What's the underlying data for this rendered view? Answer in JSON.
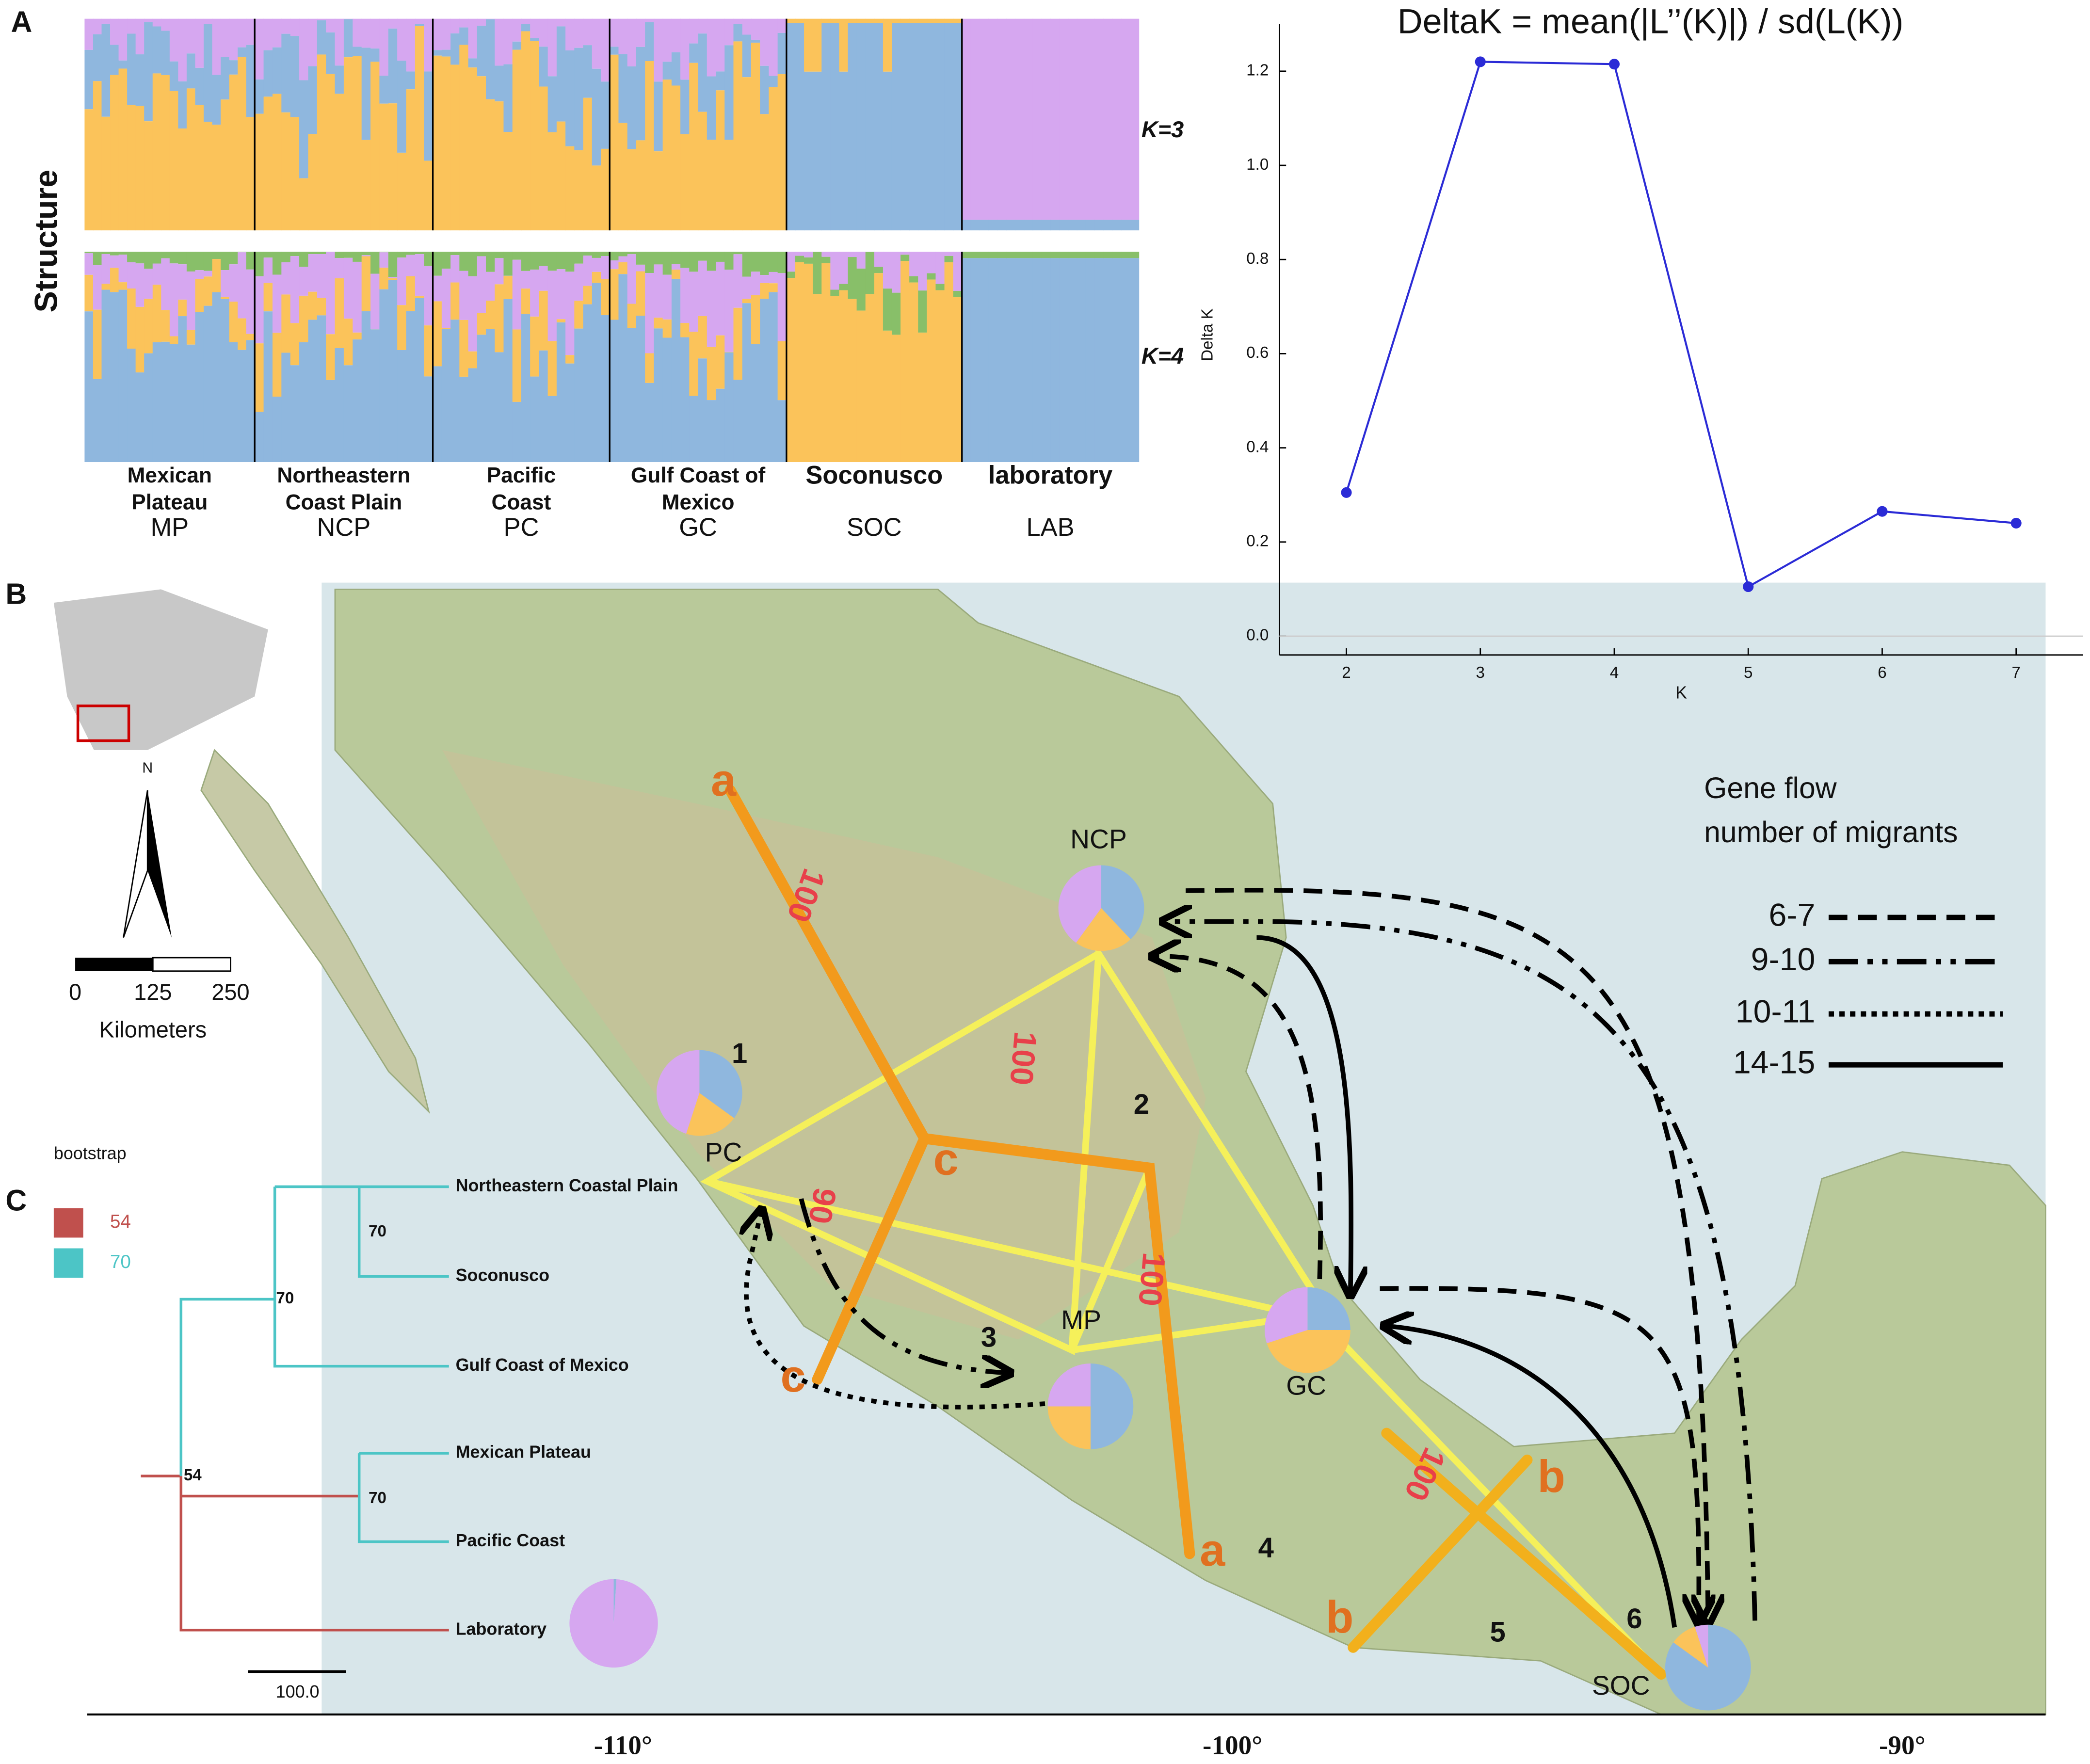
{
  "panels": {
    "a": "A",
    "b": "B",
    "c": "C"
  },
  "structure": {
    "ylabel": "Structure",
    "k_labels": [
      "K=3",
      "K=4"
    ],
    "groups": [
      {
        "name": [
          "Mexican",
          "Plateau"
        ],
        "abbr": "MP"
      },
      {
        "name": [
          "Northeastern",
          "Coast Plain"
        ],
        "abbr": "NCP"
      },
      {
        "name": [
          "Pacific",
          "Coast"
        ],
        "abbr": "PC"
      },
      {
        "name": [
          "Gulf Coast of",
          "Mexico"
        ],
        "abbr": "GC"
      },
      {
        "name": [
          "Soconusco"
        ],
        "abbr": "SOC"
      },
      {
        "name": [
          "laboratory"
        ],
        "abbr": "LAB"
      }
    ]
  },
  "chart_data": {
    "type": "line",
    "title": "DeltaK = mean(|L’’(K)|) / sd(L(K))",
    "x_label": "K",
    "y_label": "Delta K",
    "x": [
      2,
      3,
      4,
      5,
      6,
      7
    ],
    "values": [
      0.305,
      1.22,
      1.215,
      0.105,
      0.265,
      0.24
    ],
    "color": "#2b2bd6",
    "xlim": [
      1.5,
      7.5
    ],
    "ylim": [
      -0.04,
      1.3
    ],
    "xticks": [
      2,
      3,
      4,
      5,
      6,
      7
    ],
    "yticks": [
      {
        "value": 0,
        "label": "0.0"
      },
      {
        "value": 0.2,
        "label": "0.2"
      },
      {
        "value": 0.4,
        "label": "0.4"
      },
      {
        "value": 0.6,
        "label": "0.6"
      },
      {
        "value": 0.8,
        "label": "0.8"
      },
      {
        "value": 1.0,
        "label": "1.0"
      },
      {
        "value": 1.2,
        "label": "1.2"
      }
    ],
    "grid": false
  },
  "map": {
    "scale": {
      "north": "N",
      "ticks": [
        "0",
        "125",
        "250"
      ],
      "unit": "Kilometers"
    },
    "regions": [
      "NCP",
      "PC",
      "MP",
      "GC",
      "SOC"
    ],
    "clusters": [
      "1",
      "2",
      "3",
      "4",
      "5",
      "6"
    ],
    "lineages": [
      "a",
      "c",
      "c",
      "a",
      "b",
      "b"
    ],
    "supports": [
      "100",
      "100",
      "90",
      "100",
      "100"
    ],
    "legend": {
      "title": [
        "Gene flow",
        "number of migrants"
      ],
      "items": [
        "6-7",
        "9-10",
        "10-11",
        "14-15"
      ]
    },
    "longitudes": [
      "-110°",
      "-100°",
      "-90°"
    ]
  },
  "tree": {
    "legend": {
      "title": "bootstrap",
      "items": [
        {
          "label": "54",
          "color": "#c0504d"
        },
        {
          "label": "70",
          "color": "#4cc5c6"
        }
      ]
    },
    "leaves": [
      "Northeastern Coastal Plain",
      "Soconusco",
      "Gulf Coast of Mexico",
      "Mexican Plateau",
      "Pacific Coast",
      "Laboratory"
    ],
    "node_labels": [
      "70",
      "70",
      "54",
      "70"
    ],
    "scale": "100.0"
  }
}
